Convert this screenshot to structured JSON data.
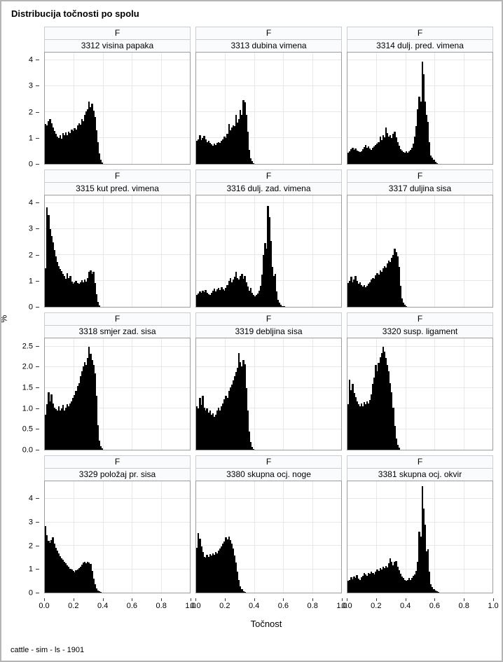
{
  "title": "Distribucija točnosti po spolu",
  "footer": "cattle - sim - ls - 1901",
  "x_axis_label": "Točnost",
  "y_axis_label": "%",
  "colors": {
    "bar": "#000000",
    "gridline": "#e8e8e8",
    "panel_border": "#9c9c9c",
    "strip_background": "#fafbfd",
    "strip_border": "#c9cdd2",
    "outer_border": "#b4b4b4",
    "text": "#000000"
  },
  "chart_data": {
    "type": "bar",
    "subtype": "histogram-lattice",
    "title": "Distribucija točnosti po spolu",
    "group_label": "F",
    "xlabel": "Točnost",
    "ylabel": "%",
    "grid": true,
    "columns": 3,
    "bin_width": 0.01,
    "x_range": [
      0,
      1
    ],
    "x_tick_values": [
      0,
      0.2,
      0.4,
      0.6,
      0.8,
      1.0
    ],
    "x_tick_labels": [
      "0.0",
      "0.2",
      "0.4",
      "0.6",
      "0.8",
      "1.0"
    ],
    "rows": [
      {
        "y_max": 4.3,
        "y_tick_values": [
          0,
          1,
          2,
          3,
          4
        ],
        "y_tick_labels": [
          "0",
          "1",
          "2",
          "3",
          "4"
        ],
        "panels": [
          {
            "title": "3312 visina papaka",
            "values": [
              1.55,
              1.48,
              1.65,
              1.72,
              1.58,
              1.42,
              1.28,
              1.15,
              1.05,
              1.0,
              1.12,
              0.98,
              1.18,
              1.1,
              1.22,
              1.12,
              1.25,
              1.18,
              1.32,
              1.28,
              1.38,
              1.32,
              1.48,
              1.58,
              1.52,
              1.72,
              1.65,
              1.88,
              2.02,
              2.1,
              2.42,
              2.2,
              2.32,
              2.05,
              1.8,
              1.3,
              0.85,
              0.4,
              0.15,
              0.05
            ]
          },
          {
            "title": "3313 dubina vimena",
            "values": [
              0.88,
              0.95,
              1.1,
              0.92,
              1.0,
              1.08,
              0.95,
              0.85,
              0.9,
              0.82,
              0.75,
              0.7,
              0.78,
              0.72,
              0.8,
              0.85,
              0.8,
              0.9,
              0.95,
              1.05,
              1.0,
              1.15,
              1.55,
              1.3,
              1.42,
              1.5,
              1.45,
              1.88,
              1.6,
              1.72,
              2.08,
              1.9,
              2.45,
              2.38,
              1.9,
              1.25,
              0.55,
              0.22,
              0.1,
              0.04
            ]
          },
          {
            "title": "3314 dulj. pred. vimena",
            "values": [
              0.42,
              0.5,
              0.58,
              0.62,
              0.55,
              0.6,
              0.52,
              0.48,
              0.45,
              0.5,
              0.58,
              0.65,
              0.72,
              0.62,
              0.68,
              0.6,
              0.55,
              0.62,
              0.68,
              0.72,
              0.78,
              0.85,
              1.05,
              0.92,
              1.1,
              1.02,
              1.4,
              1.18,
              1.05,
              1.12,
              1.0,
              1.15,
              1.25,
              1.02,
              0.85,
              0.7,
              0.58,
              0.52,
              0.45,
              0.42,
              0.48,
              0.42,
              0.5,
              0.55,
              0.62,
              0.78,
              1.05,
              1.45,
              2.1,
              2.6,
              2.4,
              3.95,
              3.45,
              2.4,
              1.9,
              1.62,
              0.85,
              0.32,
              0.25,
              0.15,
              0.08,
              0.03
            ]
          }
        ]
      },
      {
        "y_max": 4.3,
        "y_tick_values": [
          0,
          1,
          2,
          3,
          4
        ],
        "y_tick_labels": [
          "0",
          "1",
          "2",
          "3",
          "4"
        ],
        "panels": [
          {
            "title": "3315 kut pred. vimena",
            "values": [
              1.5,
              3.85,
              3.55,
              3.0,
              2.72,
              2.5,
              2.18,
              1.95,
              1.72,
              1.58,
              1.45,
              1.38,
              1.28,
              1.18,
              1.08,
              1.3,
              1.12,
              1.18,
              0.98,
              0.9,
              0.95,
              1.0,
              0.92,
              0.88,
              0.95,
              1.02,
              0.95,
              1.05,
              0.98,
              1.1,
              1.35,
              1.42,
              1.28,
              1.35,
              0.92,
              0.48,
              0.18,
              0.06
            ]
          },
          {
            "title": "3316 dulj. zad. vimena",
            "values": [
              0.45,
              0.52,
              0.6,
              0.55,
              0.62,
              0.58,
              0.65,
              0.55,
              0.5,
              0.45,
              0.55,
              0.62,
              0.7,
              0.6,
              0.68,
              0.72,
              0.65,
              0.75,
              0.68,
              0.62,
              0.72,
              0.85,
              1.0,
              1.12,
              0.95,
              1.05,
              1.15,
              1.35,
              1.12,
              1.05,
              1.18,
              1.28,
              1.08,
              1.18,
              0.95,
              0.78,
              0.62,
              0.72,
              0.55,
              0.45,
              0.4,
              0.45,
              0.52,
              0.62,
              0.82,
              1.25,
              2.0,
              2.45,
              2.25,
              3.9,
              3.45,
              2.55,
              1.55,
              1.2,
              1.28,
              0.6,
              0.28,
              0.15,
              0.08,
              0.04,
              0.02
            ]
          },
          {
            "title": "3317 duljina sisa",
            "values": [
              0.92,
              1.0,
              1.15,
              0.95,
              1.05,
              1.2,
              1.0,
              0.9,
              0.95,
              0.85,
              0.78,
              0.85,
              0.75,
              0.8,
              0.88,
              0.95,
              1.05,
              1.12,
              1.08,
              1.22,
              1.3,
              1.25,
              1.42,
              1.35,
              1.5,
              1.58,
              1.52,
              1.68,
              1.78,
              1.72,
              1.9,
              2.0,
              2.25,
              2.12,
              1.95,
              1.55,
              0.8,
              0.32,
              0.15,
              0.07,
              0.03
            ]
          }
        ]
      },
      {
        "y_max": 2.7,
        "y_tick_values": [
          0,
          0.5,
          1.0,
          1.5,
          2.0,
          2.5
        ],
        "y_tick_labels": [
          "0.0",
          "0.5",
          "1.0",
          "1.5",
          "2.0",
          "2.5"
        ],
        "panels": [
          {
            "title": "3318 smjer zad. sisa",
            "values": [
              0.85,
              1.1,
              1.4,
              1.18,
              1.35,
              1.12,
              1.02,
              0.98,
              0.95,
              1.05,
              0.95,
              1.0,
              1.08,
              0.95,
              1.02,
              1.1,
              1.05,
              1.12,
              1.18,
              1.25,
              1.32,
              1.42,
              1.55,
              1.62,
              1.78,
              1.9,
              2.02,
              2.12,
              2.05,
              2.22,
              2.5,
              2.32,
              2.18,
              2.05,
              1.85,
              1.3,
              0.6,
              0.22,
              0.09,
              0.03
            ]
          },
          {
            "title": "3319 debljina sisa",
            "values": [
              1.05,
              1.0,
              1.25,
              1.08,
              1.3,
              1.02,
              0.95,
              1.0,
              0.9,
              0.95,
              0.85,
              0.88,
              0.8,
              0.85,
              0.95,
              1.02,
              0.95,
              1.05,
              1.12,
              1.22,
              1.3,
              1.25,
              1.42,
              1.52,
              1.58,
              1.68,
              1.78,
              1.88,
              1.98,
              2.35,
              2.12,
              2.02,
              2.18,
              2.08,
              1.5,
              0.95,
              0.45,
              0.18,
              0.07,
              0.02
            ]
          },
          {
            "title": "3320 susp. ligament",
            "values": [
              1.1,
              1.7,
              1.45,
              1.6,
              1.38,
              1.28,
              1.18,
              1.1,
              1.05,
              1.12,
              1.05,
              1.15,
              1.1,
              1.18,
              1.12,
              1.2,
              1.35,
              1.6,
              1.75,
              2.05,
              1.9,
              2.1,
              2.25,
              2.35,
              2.5,
              2.38,
              2.22,
              2.05,
              1.9,
              1.62,
              1.4,
              1.02,
              0.58,
              0.28,
              0.12,
              0.05
            ]
          }
        ]
      },
      {
        "y_max": 4.75,
        "y_tick_values": [
          0,
          1,
          2,
          3,
          4
        ],
        "y_tick_labels": [
          "0",
          "1",
          "2",
          "3",
          "4"
        ],
        "panels": [
          {
            "title": "3329 položaj pr. sisa",
            "values": [
              2.85,
              2.45,
              2.2,
              2.12,
              2.25,
              2.35,
              2.1,
              1.92,
              1.8,
              1.68,
              1.55,
              1.45,
              1.4,
              1.3,
              1.25,
              1.18,
              1.1,
              1.02,
              0.98,
              0.92,
              0.88,
              0.95,
              1.0,
              1.05,
              1.12,
              1.2,
              1.28,
              1.32,
              1.25,
              1.3,
              1.28,
              1.22,
              0.92,
              0.6,
              0.35,
              0.18,
              0.1,
              0.05,
              0.02
            ]
          },
          {
            "title": "3380 skupna ocj. noge",
            "values": [
              1.9,
              2.55,
              2.3,
              1.98,
              1.72,
              1.52,
              1.48,
              1.6,
              1.52,
              1.65,
              1.58,
              1.68,
              1.62,
              1.72,
              1.68,
              1.78,
              1.88,
              1.98,
              2.08,
              2.18,
              2.35,
              2.28,
              2.4,
              2.25,
              2.08,
              1.88,
              1.58,
              1.28,
              0.9,
              0.55,
              0.28,
              0.14,
              0.07,
              0.03
            ]
          },
          {
            "title": "3381 skupna ocj. okvir",
            "values": [
              0.5,
              0.55,
              0.65,
              0.58,
              0.7,
              0.62,
              0.75,
              0.6,
              0.55,
              0.65,
              0.72,
              0.85,
              0.78,
              0.72,
              0.85,
              0.8,
              0.9,
              0.85,
              0.78,
              0.9,
              1.0,
              0.92,
              1.05,
              0.98,
              1.1,
              1.05,
              1.15,
              1.08,
              1.25,
              1.45,
              1.3,
              1.18,
              1.3,
              1.35,
              1.12,
              0.95,
              0.8,
              0.7,
              0.62,
              0.55,
              0.5,
              0.55,
              0.62,
              0.55,
              0.62,
              0.72,
              0.78,
              0.92,
              1.3,
              2.6,
              2.4,
              4.55,
              3.6,
              2.9,
              1.75,
              1.85,
              0.9,
              0.35,
              0.25,
              0.15,
              0.1,
              0.05,
              0.02
            ]
          }
        ]
      }
    ]
  }
}
